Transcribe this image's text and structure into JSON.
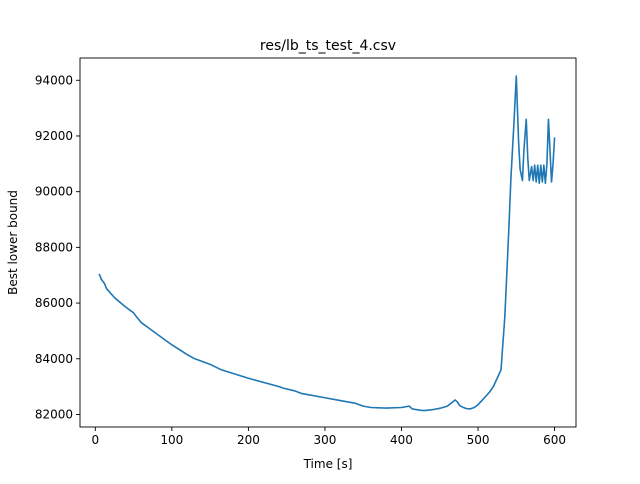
{
  "chart_data": {
    "type": "line",
    "title": "res/lb_ts_test_4.csv",
    "xlabel": "Time [s]",
    "ylabel": "Best lower bound",
    "xlim": [
      -20,
      628
    ],
    "ylim": [
      81550,
      94800
    ],
    "xticks": [
      0,
      100,
      200,
      300,
      400,
      500,
      600
    ],
    "yticks": [
      82000,
      84000,
      86000,
      88000,
      90000,
      92000,
      94000
    ],
    "xtick_labels": [
      "0",
      "100",
      "200",
      "300",
      "400",
      "500",
      "600"
    ],
    "ytick_labels": [
      "82000",
      "84000",
      "86000",
      "88000",
      "90000",
      "92000",
      "94000"
    ],
    "grid": false,
    "line_color": "#1f77b4",
    "series": [
      {
        "x": [
          5,
          8,
          12,
          15,
          17,
          20,
          25,
          30,
          40,
          50,
          54,
          57,
          60,
          70,
          80,
          100,
          120,
          130,
          150,
          165,
          200,
          240,
          245,
          260,
          270,
          280,
          300,
          320,
          330,
          340,
          345,
          350,
          360,
          380,
          400,
          410,
          414,
          418,
          425,
          430,
          440,
          450,
          460,
          467,
          470,
          473,
          476,
          480,
          485,
          490,
          495,
          500,
          505,
          510,
          515,
          520,
          525,
          530,
          535,
          540,
          543,
          547,
          550,
          553,
          555,
          558,
          560,
          563,
          565,
          567,
          570,
          572,
          574,
          576,
          578,
          580,
          582,
          584,
          586,
          588,
          590,
          592,
          594,
          596,
          598,
          600
        ],
        "y": [
          87050,
          86850,
          86700,
          86500,
          86450,
          86350,
          86200,
          86080,
          85850,
          85650,
          85500,
          85400,
          85300,
          85100,
          84900,
          84500,
          84150,
          84000,
          83800,
          83600,
          83300,
          83000,
          82950,
          82850,
          82750,
          82700,
          82600,
          82500,
          82450,
          82400,
          82350,
          82300,
          82250,
          82230,
          82250,
          82300,
          82200,
          82180,
          82150,
          82140,
          82170,
          82220,
          82300,
          82450,
          82520,
          82450,
          82320,
          82260,
          82210,
          82200,
          82250,
          82350,
          82500,
          82650,
          82800,
          83000,
          83300,
          83600,
          85500,
          88500,
          90500,
          92500,
          94150,
          91800,
          90800,
          90400,
          91500,
          92600,
          91200,
          90400,
          90900,
          90400,
          90950,
          90350,
          90950,
          90300,
          90950,
          90350,
          90950,
          90300,
          91000,
          92600,
          91500,
          90350,
          91000,
          91950
        ]
      }
    ]
  }
}
